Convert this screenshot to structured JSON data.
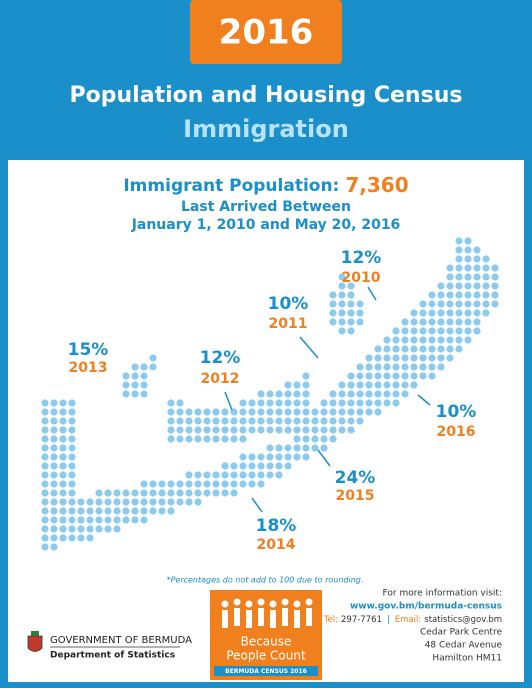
{
  "header": {
    "year": "2016",
    "title": "Population and Housing Census",
    "subtitle": "Immigration"
  },
  "summary": {
    "label": "Immigrant Population:",
    "total": "7,360",
    "line1": "Last Arrived Between",
    "line2": "January 1, 2010 and May 20, 2016"
  },
  "regions": [
    {
      "percent": "15%",
      "year": "2013"
    },
    {
      "percent": "12%",
      "year": "2012"
    },
    {
      "percent": "10%",
      "year": "2011"
    },
    {
      "percent": "12%",
      "year": "2010"
    },
    {
      "percent": "10%",
      "year": "2016"
    },
    {
      "percent": "24%",
      "year": "2015"
    },
    {
      "percent": "18%",
      "year": "2014"
    }
  ],
  "footnote": "*Percentages do not add to 100 due to rounding.",
  "contact": {
    "heading": "For more information visit:",
    "url": "www.gov.bm/bermuda-census",
    "phone_label": "Tel:",
    "phone": "297-7761",
    "email_label": "Email:",
    "email": "statistics@gov.bm",
    "address": [
      "Cedar Park Centre",
      "48 Cedar Avenue",
      "Hamilton HM11"
    ]
  },
  "logo": {
    "line1": "Because",
    "line2": "People Count",
    "line3": "BERMUDA CENSUS 2016"
  },
  "government": {
    "line1": "GOVERNMENT OF BERMUDA",
    "line2": "Department of Statistics"
  }
}
